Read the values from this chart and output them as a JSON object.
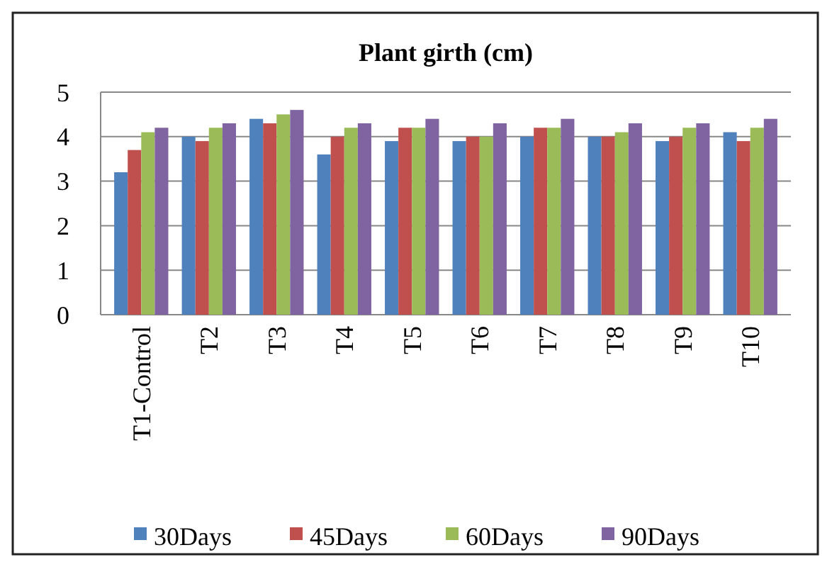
{
  "chart_data": {
    "type": "bar",
    "title": "Plant girth (cm)",
    "categories": [
      "T1-Control",
      "T2",
      "T3",
      "T4",
      "T5",
      "T6",
      "T7",
      "T8",
      "T9",
      "T10"
    ],
    "series": [
      {
        "name": "30Days",
        "color": "#4f81bd",
        "values": [
          3.2,
          4.0,
          4.4,
          3.6,
          3.9,
          3.9,
          4.0,
          4.0,
          3.9,
          4.1
        ]
      },
      {
        "name": "45Days",
        "color": "#c0504d",
        "values": [
          3.7,
          3.9,
          4.3,
          4.0,
          4.2,
          4.0,
          4.2,
          4.0,
          4.0,
          3.9
        ]
      },
      {
        "name": "60Days",
        "color": "#9bbb59",
        "values": [
          4.1,
          4.2,
          4.5,
          4.2,
          4.2,
          4.0,
          4.2,
          4.1,
          4.2,
          4.2
        ]
      },
      {
        "name": "90Days",
        "color": "#8064a2",
        "values": [
          4.2,
          4.3,
          4.6,
          4.3,
          4.4,
          4.3,
          4.4,
          4.3,
          4.3,
          4.4
        ]
      }
    ],
    "ylim": [
      0,
      5
    ],
    "yticks": [
      0,
      1,
      2,
      3,
      4,
      5
    ],
    "grid": "y",
    "legend": "bottom"
  }
}
